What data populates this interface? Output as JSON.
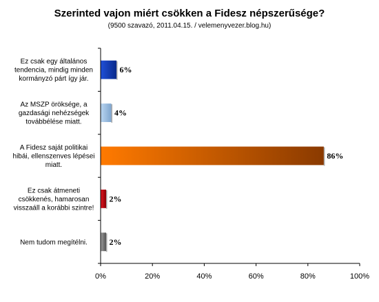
{
  "chart_data": {
    "type": "bar",
    "orientation": "horizontal",
    "title": "Szerinted vajon miért csökken a Fidesz népszerűsége?",
    "subtitle": "(9500 szavazó, 2011.04.15. / velemenyvezer.blog.hu)",
    "categories": [
      [
        "Ez csak egy általános",
        "tendencia, mindig minden",
        "kormányzó párt így jár."
      ],
      [
        "Az MSZP öröksége, a",
        "gazdasági nehézségek",
        "továbbélése miatt."
      ],
      [
        "A Fidesz saját politikai",
        "hibái, ellenszenves lépései",
        "miatt."
      ],
      [
        "Ez csak átmeneti",
        "csökkenés, hamarosan",
        "visszaáll a korábbi szintre!"
      ],
      [
        "Nem tudom megítélni."
      ]
    ],
    "values": [
      6,
      4,
      86,
      2,
      2
    ],
    "data_labels": [
      "6%",
      "4%",
      "86%",
      "2%",
      "2%"
    ],
    "bar_colors": [
      [
        "#1f4fd8",
        "#0a2a8a"
      ],
      [
        "#b8d4f0",
        "#7fa6cf"
      ],
      [
        "#ff7a00",
        "#8a3a00"
      ],
      [
        "#e0141e",
        "#8a0008"
      ],
      [
        "#9a9a9a",
        "#555555"
      ]
    ],
    "xlim": [
      0,
      100
    ],
    "xticks": [
      0,
      20,
      40,
      60,
      80,
      100
    ],
    "xtick_labels": [
      "0%",
      "20%",
      "40%",
      "60%",
      "80%",
      "100%"
    ],
    "grid": false,
    "legend": "none"
  }
}
